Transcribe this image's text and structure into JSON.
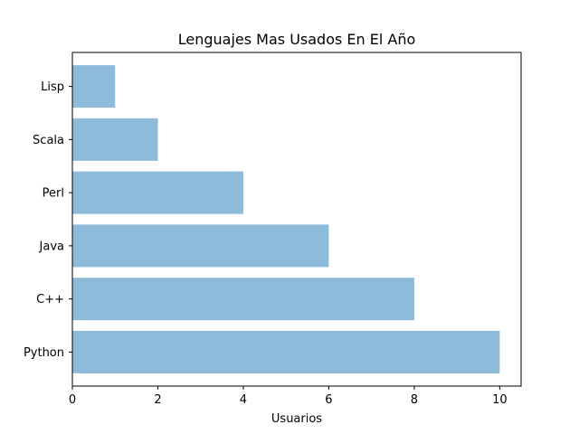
{
  "chart_data": {
    "type": "bar",
    "orientation": "horizontal",
    "title": "Lenguajes Mas Usados En El Año",
    "xlabel": "Usuarios",
    "ylabel": "",
    "categories": [
      "Python",
      "C++",
      "Java",
      "Perl",
      "Scala",
      "Lisp"
    ],
    "values": [
      10,
      8,
      6,
      4,
      2,
      1
    ],
    "xlim": [
      0,
      10.5
    ],
    "xticks": [
      0,
      2,
      4,
      6,
      8,
      10
    ],
    "grid": false,
    "legend": "none",
    "bar_color": "#8fbbda"
  }
}
